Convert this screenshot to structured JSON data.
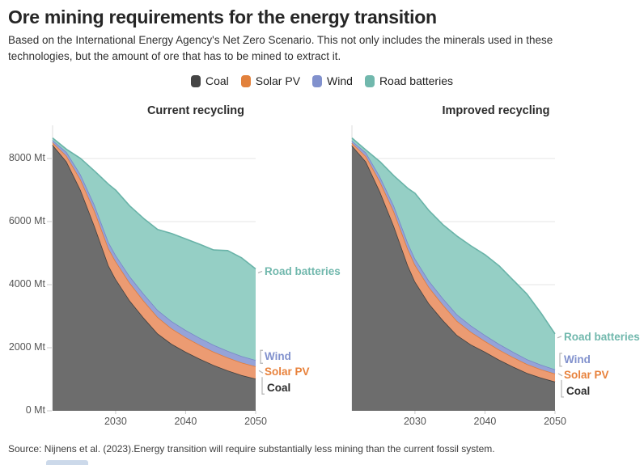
{
  "header": {
    "title": "Ore mining requirements for the energy transition",
    "subtitle": "Based on the International Energy Agency's Net Zero Scenario. This not only includes the minerals used in these technologies, but the amount of ore that has to be mined to extract it."
  },
  "legend": {
    "items": [
      {
        "label": "Coal",
        "color": "#454545"
      },
      {
        "label": "Solar PV",
        "color": "#e2813c"
      },
      {
        "label": "Wind",
        "color": "#8191cd"
      },
      {
        "label": "Road batteries",
        "color": "#71b8ad"
      }
    ]
  },
  "footer": {
    "source": "Source: Nijnens et al. (2023).Energy transition will require substantially less mining than the current fossil system."
  },
  "chart_data": [
    {
      "type": "area",
      "stacked": true,
      "title": "Current recycling",
      "x": [
        2021,
        2023,
        2025,
        2027,
        2029,
        2030,
        2032,
        2034,
        2036,
        2038,
        2040,
        2042,
        2044,
        2046,
        2048,
        2050
      ],
      "xlim": [
        2021,
        2050
      ],
      "ylim": [
        0,
        9050
      ],
      "xticks": [
        2030,
        2040,
        2050
      ],
      "yticks": [
        0,
        2000,
        4000,
        6000,
        8000
      ],
      "ytick_suffix": " Mt",
      "show_y_labels": true,
      "grid": true,
      "series": [
        {
          "name": "Coal",
          "fill": "#6d6d6d",
          "stroke": "#404040",
          "label_color": "#2d2d2d",
          "values": [
            8430,
            7900,
            7000,
            5850,
            4600,
            4180,
            3500,
            2950,
            2450,
            2120,
            1870,
            1650,
            1450,
            1280,
            1130,
            1020
          ]
        },
        {
          "name": "Solar PV",
          "fill": "#ec9b72",
          "stroke": "#e07b3a",
          "label_color": "#e8823c",
          "values": [
            80,
            180,
            330,
            480,
            540,
            560,
            560,
            540,
            520,
            490,
            460,
            440,
            420,
            410,
            400,
            390
          ]
        },
        {
          "name": "Wind",
          "fill": "#95a3d8",
          "stroke": "#7787c8",
          "label_color": "#8191cd",
          "values": [
            70,
            120,
            160,
            190,
            200,
            200,
            210,
            220,
            225,
            230,
            230,
            225,
            220,
            210,
            205,
            200
          ]
        },
        {
          "name": "Road batteries",
          "fill": "#95cfc5",
          "stroke": "#69b3a8",
          "label_color": "#71b8ad",
          "values": [
            70,
            90,
            510,
            1080,
            1840,
            2060,
            2230,
            2390,
            2555,
            2780,
            2890,
            2965,
            3010,
            3180,
            3115,
            2890
          ]
        }
      ]
    },
    {
      "type": "area",
      "stacked": true,
      "title": "Improved recycling",
      "x": [
        2021,
        2023,
        2025,
        2027,
        2029,
        2030,
        2032,
        2034,
        2036,
        2038,
        2040,
        2042,
        2044,
        2046,
        2048,
        2050
      ],
      "xlim": [
        2021,
        2050
      ],
      "ylim": [
        0,
        9050
      ],
      "xticks": [
        2030,
        2040,
        2050
      ],
      "yticks": [
        0,
        2000,
        4000,
        6000,
        8000
      ],
      "ytick_suffix": " Mt",
      "show_y_labels": false,
      "grid": true,
      "series": [
        {
          "name": "Coal",
          "fill": "#6d6d6d",
          "stroke": "#404040",
          "label_color": "#2d2d2d",
          "values": [
            8410,
            7900,
            6950,
            5850,
            4600,
            4100,
            3400,
            2870,
            2400,
            2100,
            1870,
            1620,
            1400,
            1200,
            1050,
            925
          ]
        },
        {
          "name": "Solar PV",
          "fill": "#ec9b72",
          "stroke": "#e07b3a",
          "label_color": "#e8823c",
          "values": [
            80,
            170,
            320,
            460,
            520,
            530,
            520,
            490,
            450,
            400,
            340,
            320,
            300,
            280,
            265,
            255
          ]
        },
        {
          "name": "Wind",
          "fill": "#95a3d8",
          "stroke": "#7787c8",
          "label_color": "#8191cd",
          "values": [
            70,
            115,
            155,
            185,
            195,
            195,
            200,
            205,
            205,
            200,
            190,
            180,
            170,
            155,
            145,
            135
          ]
        },
        {
          "name": "Road batteries",
          "fill": "#95cfc5",
          "stroke": "#69b3a8",
          "label_color": "#71b8ad",
          "values": [
            90,
            85,
            475,
            955,
            1735,
            2075,
            2230,
            2335,
            2485,
            2530,
            2550,
            2480,
            2280,
            2065,
            1640,
            1125
          ]
        }
      ]
    }
  ]
}
